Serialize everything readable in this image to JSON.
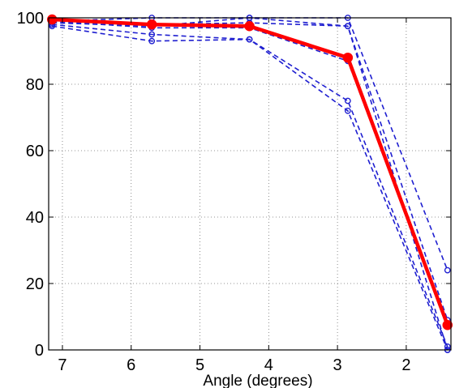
{
  "chart_data": {
    "type": "line",
    "title": "",
    "xlabel": "Angle (degrees)",
    "ylabel": "",
    "xlim": [
      7.2,
      1.35
    ],
    "ylim": [
      0,
      100
    ],
    "x_reversed": true,
    "grid": true,
    "xticks": [
      7,
      6,
      5,
      4,
      3,
      2
    ],
    "yticks": [
      0,
      20,
      40,
      60,
      80,
      100
    ],
    "x": [
      7.15,
      5.7,
      4.28,
      2.85,
      1.4
    ],
    "series": [
      {
        "values": [
          99.0,
          100.0,
          100.0,
          100.0,
          24.0
        ],
        "style": "dashed",
        "color": "#1f1fd0"
      },
      {
        "values": [
          98.5,
          97.5,
          100.0,
          97.5,
          9.0
        ],
        "style": "dashed",
        "color": "#1f1fd0"
      },
      {
        "values": [
          99.5,
          98.0,
          98.5,
          97.5,
          0.0
        ],
        "style": "dashed",
        "color": "#1f1fd0"
      },
      {
        "values": [
          99.0,
          97.0,
          97.0,
          87.0,
          7.0
        ],
        "style": "dashed",
        "color": "#1f1fd0"
      },
      {
        "values": [
          98.0,
          95.0,
          93.5,
          75.0,
          1.0
        ],
        "style": "dashed",
        "color": "#1f1fd0"
      },
      {
        "values": [
          97.5,
          93.0,
          93.5,
          72.0,
          0.0
        ],
        "style": "dashed",
        "color": "#1f1fd0"
      },
      {
        "values": [
          99.5,
          98.0,
          97.5,
          88.0,
          7.5
        ],
        "style": "solid-thick",
        "color": "#ff0000"
      }
    ]
  }
}
